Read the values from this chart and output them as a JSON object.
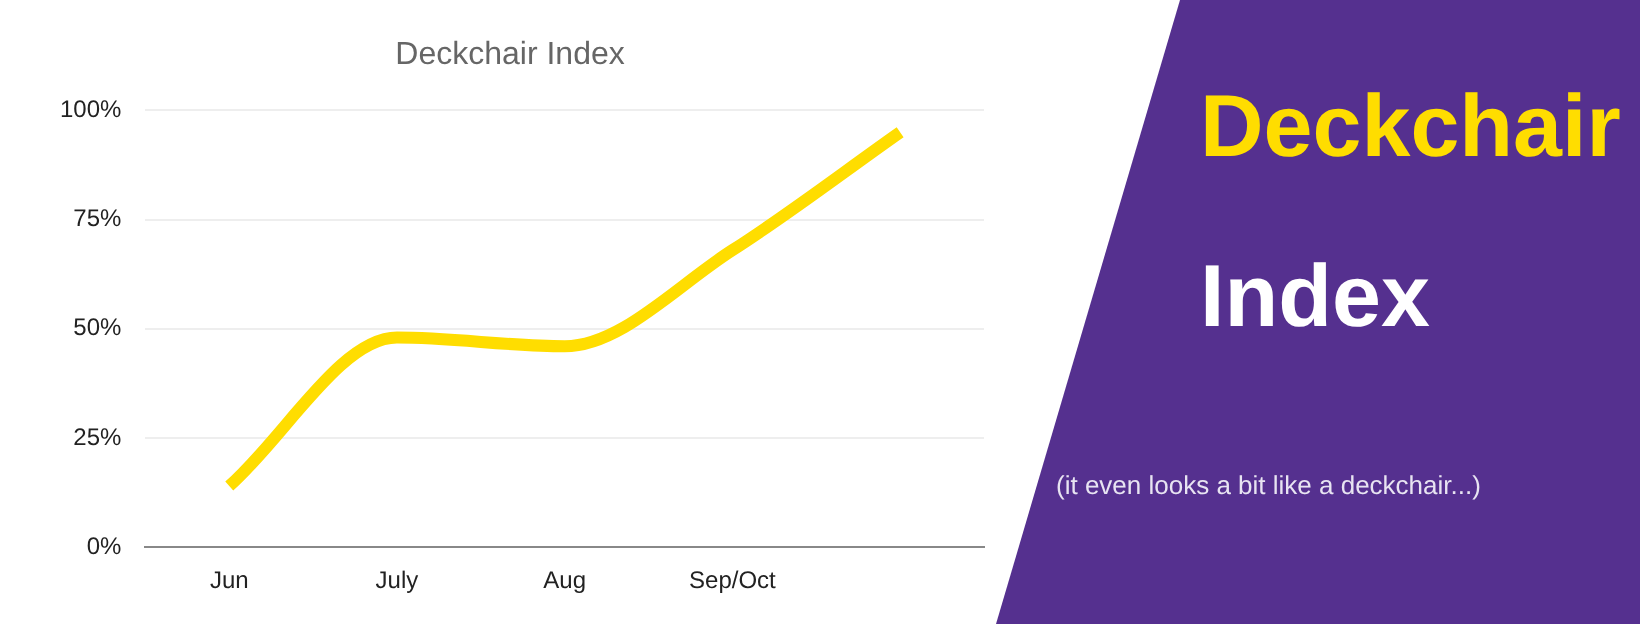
{
  "chart_data": {
    "type": "line",
    "title": "Deckchair Index",
    "categories": [
      "Jun",
      "July",
      "Aug",
      "Sep/Oct",
      null
    ],
    "series": [
      {
        "color": "#ffdd00",
        "values": [
          14,
          48,
          46,
          68,
          95
        ]
      }
    ],
    "ylim": [
      0,
      100
    ],
    "yticks": [
      {
        "value": 0,
        "label": "0%"
      },
      {
        "value": 25,
        "label": "25%"
      },
      {
        "value": 50,
        "label": "50%"
      },
      {
        "value": 75,
        "label": "75%"
      },
      {
        "value": 100,
        "label": "100%"
      }
    ],
    "grid": "y",
    "legend": false,
    "marker": "none",
    "line_style": "solid",
    "annotations": [
      "Deckchair",
      "Index",
      "(it even looks a bit like a deckchair...)"
    ]
  }
}
